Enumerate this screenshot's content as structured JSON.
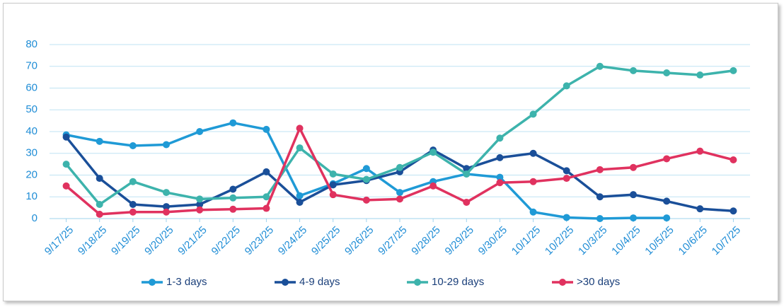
{
  "chart_data": {
    "type": "line",
    "categories": [
      "9/17/25",
      "9/18/25",
      "9/19/25",
      "9/20/25",
      "9/21/25",
      "9/22/25",
      "9/23/25",
      "9/24/25",
      "9/25/25",
      "9/26/25",
      "9/27/25",
      "9/28/25",
      "9/29/25",
      "9/30/25",
      "10/1/25",
      "10/2/25",
      "10/3/25",
      "10/4/25",
      "10/5/25",
      "10/6/25",
      "10/7/25"
    ],
    "series": [
      {
        "name": "1-3 days",
        "color": "#1f9ad6",
        "values": [
          38.5,
          35.5,
          33.5,
          34,
          40,
          44,
          41,
          10.5,
          16,
          23,
          12,
          17,
          20.5,
          19,
          3,
          0.5,
          0,
          0.3,
          0.3,
          null,
          null
        ]
      },
      {
        "name": "4-9 days",
        "color": "#1a4f99",
        "values": [
          37.5,
          18.5,
          6.5,
          5.5,
          6.5,
          13.5,
          21.5,
          7.5,
          15.5,
          17.5,
          21.5,
          31.5,
          23,
          28,
          30,
          22,
          10,
          11,
          8,
          4.5,
          3.5
        ]
      },
      {
        "name": "10-29 days",
        "color": "#3db3ac",
        "values": [
          25,
          6.5,
          17,
          12,
          9,
          9.5,
          10,
          32.5,
          20.5,
          18,
          23.5,
          30.5,
          20.5,
          37,
          48,
          61,
          70,
          68,
          67,
          66,
          68
        ]
      },
      {
        "name": ">30 days",
        "color": "#e0325f",
        "values": [
          15,
          2,
          3,
          3,
          4,
          4.3,
          4.7,
          41.5,
          11,
          8.5,
          9,
          15,
          7.5,
          16.5,
          17,
          18.5,
          22.5,
          23.5,
          27.5,
          31,
          27
        ]
      }
    ],
    "ylim": [
      0,
      80
    ],
    "yticks": [
      0,
      10,
      20,
      30,
      40,
      50,
      60,
      70,
      80
    ],
    "grid": true,
    "legend": "bottom"
  }
}
